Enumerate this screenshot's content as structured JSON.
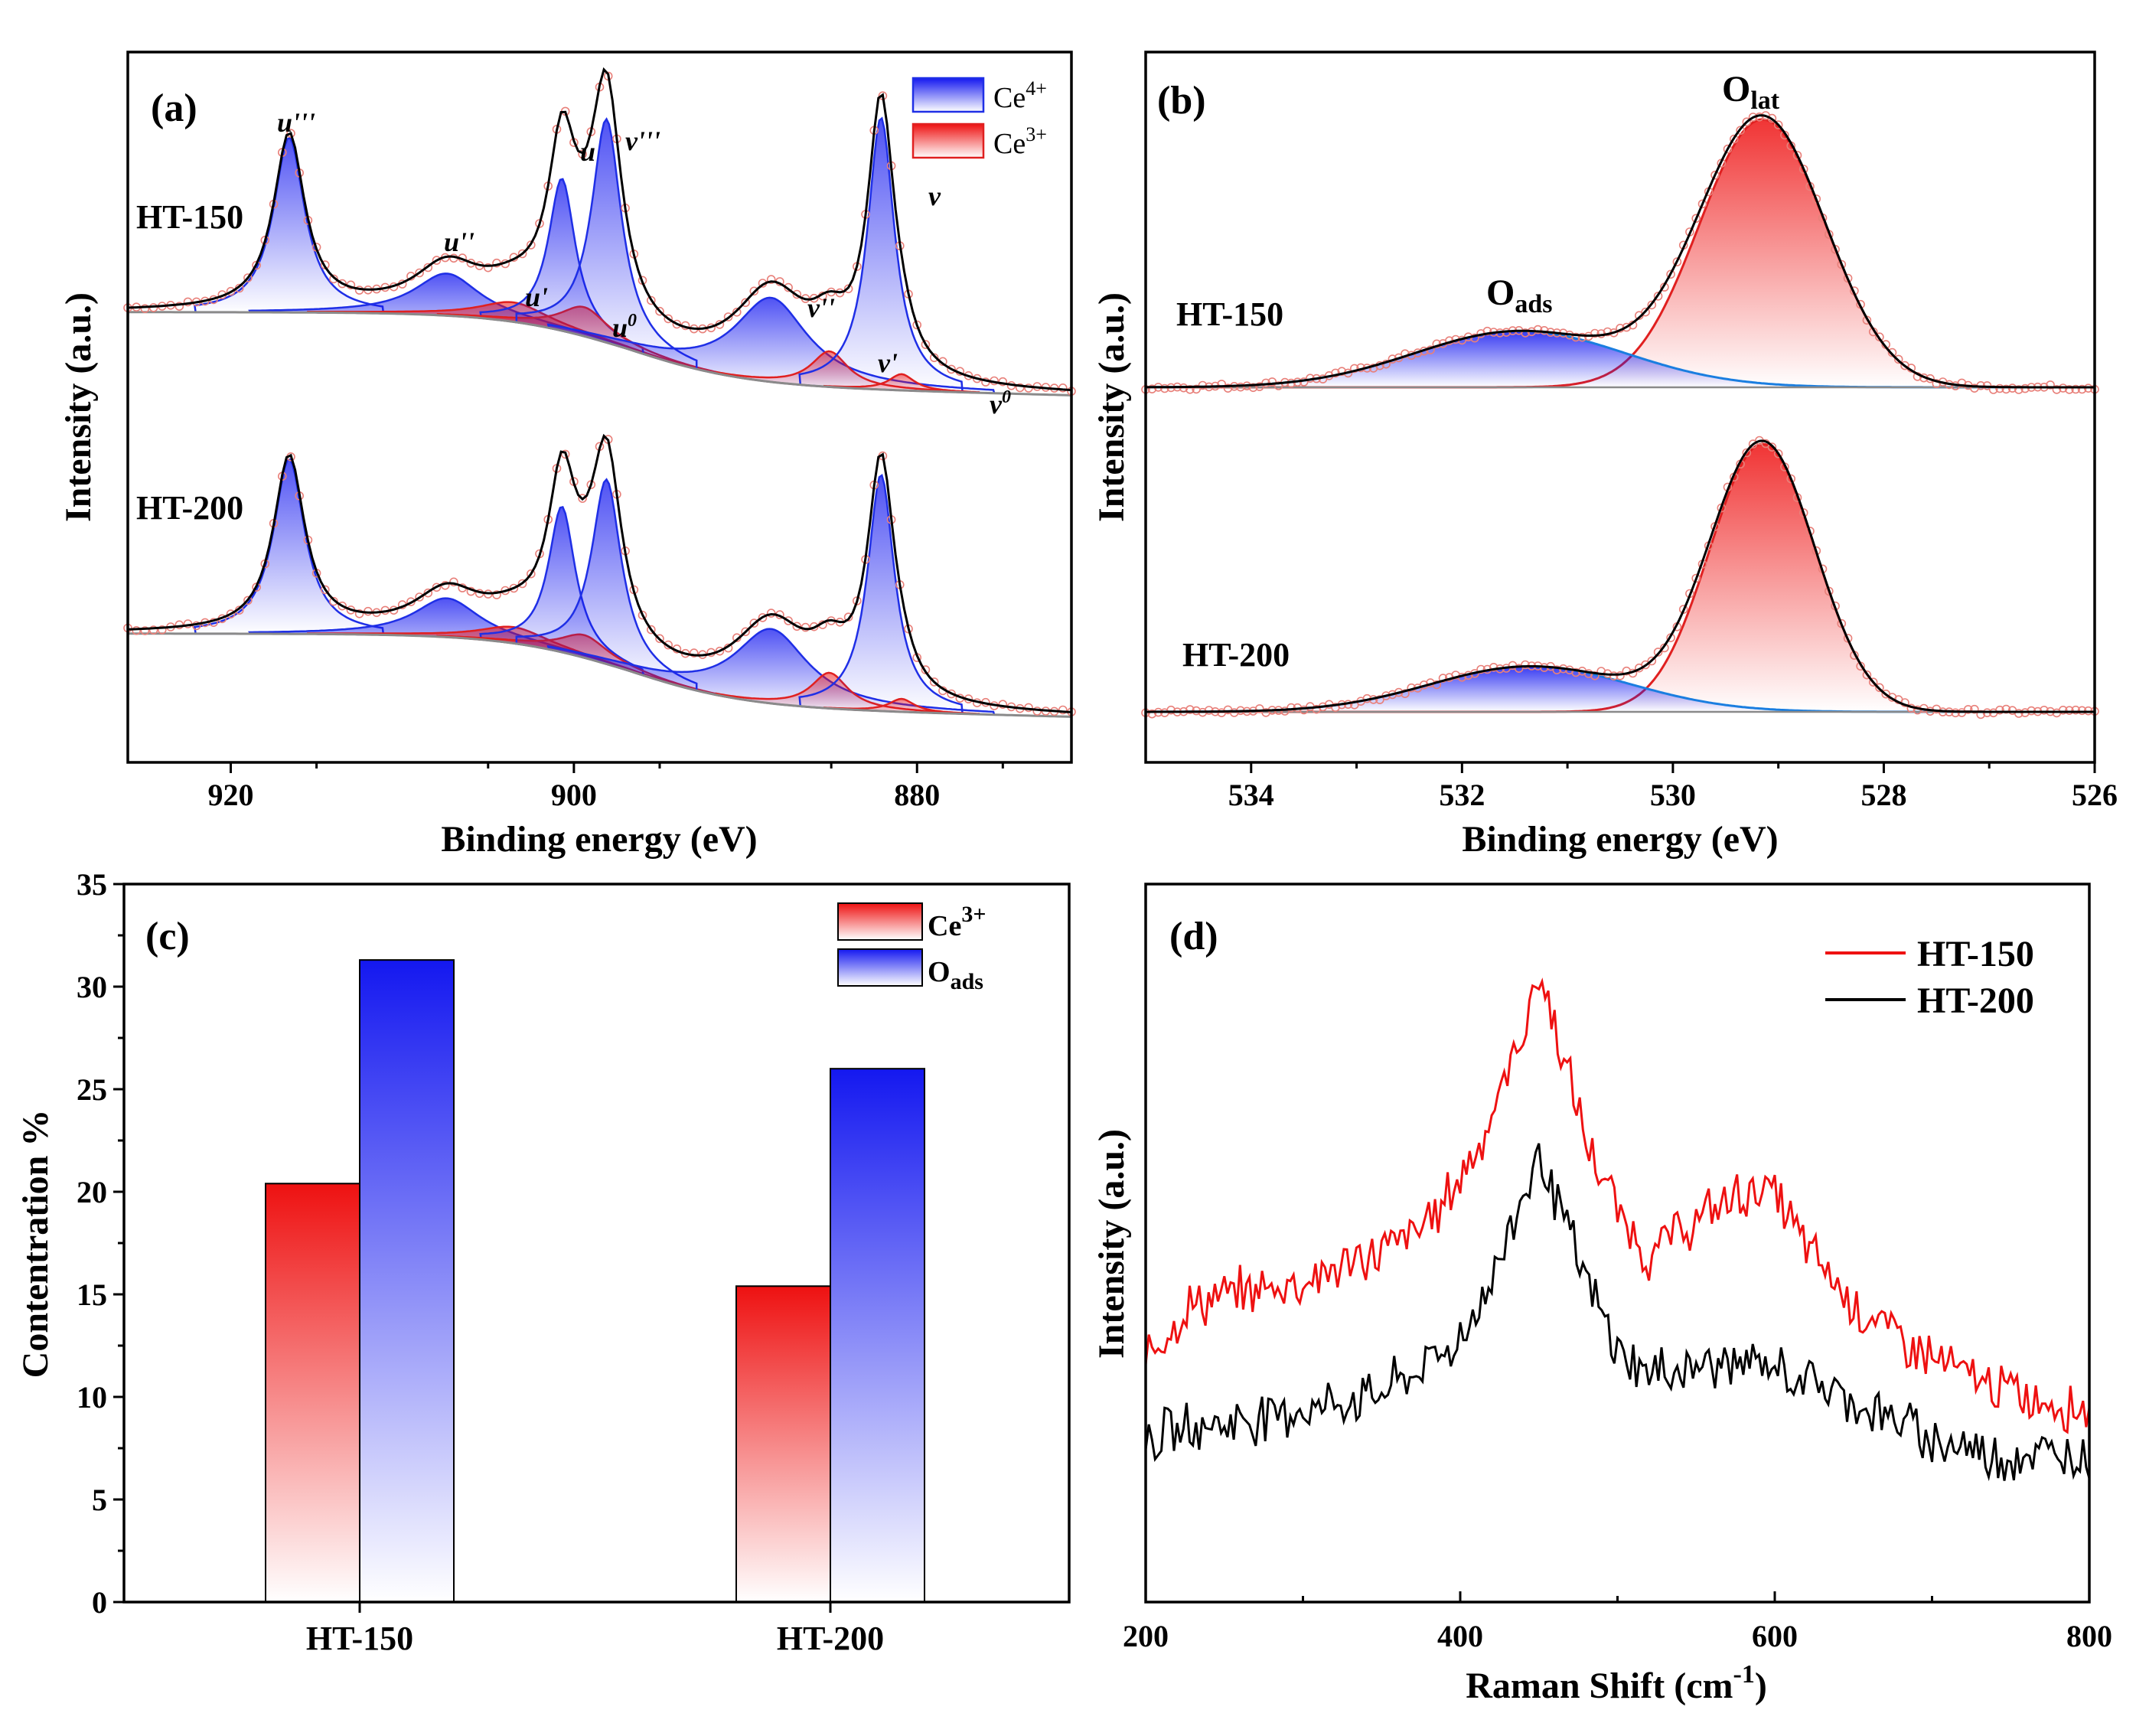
{
  "chart_data": [
    {
      "panel": "(a)",
      "type": "line",
      "xlabel": "Binding energy (eV)",
      "ylabel": "Intensity (a.u.)",
      "xlim": [
        926,
        871
      ],
      "xticks": [
        "920",
        "900",
        "880"
      ],
      "xtick_values": [
        920,
        900,
        880
      ],
      "legend": [
        {
          "label": "Ce",
          "sup": "4+",
          "color": "#1f2fe6"
        },
        {
          "label": "Ce",
          "sup": "3+",
          "color": "#e02020"
        }
      ],
      "series": [
        {
          "name": "HT-150",
          "offset": 1.0,
          "peaks": [
            {
              "label": "u'''",
              "center": 916.6,
              "height": 0.54,
              "width": 1.1,
              "species": "Ce4+"
            },
            {
              "label": "u''",
              "center": 907.4,
              "height": 0.13,
              "width": 2.3,
              "species": "Ce4+"
            },
            {
              "label": "u'",
              "center": 903.5,
              "height": 0.06,
              "width": 2.4,
              "species": "Ce3+"
            },
            {
              "label": "u",
              "center": 900.7,
              "height": 0.47,
              "width": 0.95,
              "species": "Ce4+"
            },
            {
              "label": "u0",
              "center": 899.4,
              "height": 0.09,
              "width": 1.7,
              "species": "Ce3+"
            },
            {
              "label": "v'''",
              "center": 898.1,
              "height": 0.69,
              "width": 1.05,
              "species": "Ce4+"
            },
            {
              "label": "v''",
              "center": 888.5,
              "height": 0.26,
              "width": 2.6,
              "species": "Ce4+"
            },
            {
              "label": "v'",
              "center": 885.1,
              "height": 0.11,
              "width": 1.3,
              "species": "Ce3+"
            },
            {
              "label": "v",
              "center": 882.1,
              "height": 0.84,
              "width": 0.95,
              "species": "Ce4+"
            },
            {
              "label": "v0",
              "center": 880.9,
              "height": 0.05,
              "width": 0.9,
              "species": "Ce3+"
            }
          ]
        },
        {
          "name": "HT-200",
          "offset": 0.0,
          "peaks": [
            {
              "label": "u'''",
              "center": 916.6,
              "height": 0.54,
              "width": 1.1,
              "species": "Ce4+"
            },
            {
              "label": "u''",
              "center": 907.4,
              "height": 0.12,
              "width": 2.3,
              "species": "Ce4+"
            },
            {
              "label": "u'",
              "center": 903.5,
              "height": 0.05,
              "width": 2.4,
              "species": "Ce3+"
            },
            {
              "label": "u",
              "center": 900.7,
              "height": 0.45,
              "width": 0.95,
              "species": "Ce4+"
            },
            {
              "label": "u0",
              "center": 899.4,
              "height": 0.07,
              "width": 1.7,
              "species": "Ce3+"
            },
            {
              "label": "v'''",
              "center": 898.1,
              "height": 0.57,
              "width": 1.05,
              "species": "Ce4+"
            },
            {
              "label": "v''",
              "center": 888.5,
              "height": 0.23,
              "width": 2.6,
              "species": "Ce4+"
            },
            {
              "label": "v'",
              "center": 885.1,
              "height": 0.11,
              "width": 1.3,
              "species": "Ce3+"
            },
            {
              "label": "v",
              "center": 882.1,
              "height": 0.73,
              "width": 0.95,
              "species": "Ce4+"
            },
            {
              "label": "v0",
              "center": 880.9,
              "height": 0.04,
              "width": 0.9,
              "species": "Ce3+"
            }
          ]
        }
      ]
    },
    {
      "panel": "(b)",
      "type": "line",
      "xlabel": "Binding energy (eV)",
      "ylabel": "Intensity (a.u.)",
      "xlim": [
        535,
        526
      ],
      "xticks": [
        "534",
        "532",
        "530",
        "528",
        "526"
      ],
      "xtick_values": [
        534,
        532,
        530,
        528,
        526
      ],
      "peak_labels": {
        "O_lat": {
          "base": "O",
          "sub": "lat"
        },
        "O_ads": {
          "base": "O",
          "sub": "ads"
        }
      },
      "series": [
        {
          "name": "HT-150",
          "offset": 1.0,
          "O_lat_center": 529.15,
          "O_lat_height": 1.0,
          "O_lat_width": 0.6,
          "O_ads_center": 531.45,
          "O_ads_height": 0.21,
          "O_ads_width": 1.0
        },
        {
          "name": "HT-200",
          "offset": 0.0,
          "O_lat_center": 529.15,
          "O_lat_height": 1.0,
          "O_lat_width": 0.5,
          "O_ads_center": 531.35,
          "O_ads_height": 0.17,
          "O_ads_width": 0.95
        }
      ]
    },
    {
      "panel": "(c)",
      "type": "bar",
      "ylabel": "Contentration %",
      "ylim": [
        0,
        35
      ],
      "yticks": [
        "0",
        "5",
        "10",
        "15",
        "20",
        "25",
        "30",
        "35"
      ],
      "ytick_values": [
        0,
        5,
        10,
        15,
        20,
        25,
        30,
        35
      ],
      "categories": [
        "HT-150",
        "HT-200"
      ],
      "series": [
        {
          "name": "Ce3+",
          "label": "Ce",
          "sup": "3+",
          "color": "#ee1111",
          "values": [
            20.4,
            15.4
          ]
        },
        {
          "name": "Oads",
          "label": "O",
          "sub": "ads",
          "color": "#1418f0",
          "values": [
            31.3,
            26.0
          ]
        }
      ]
    },
    {
      "panel": "(d)",
      "type": "line",
      "xlabel": "Raman Shift  (cm",
      "xlabel_sup": "-1",
      "xlabel_end": ")",
      "ylabel": "Intensity (a.u.)",
      "xlim": [
        200,
        800
      ],
      "xticks": [
        "200",
        "400",
        "600",
        "800"
      ],
      "xtick_values": [
        200,
        400,
        600,
        800
      ],
      "series": [
        {
          "name": "HT-150",
          "color": "#ee1111",
          "x": [
            200,
            230,
            260,
            300,
            340,
            370,
            385,
            400,
            420,
            440,
            450,
            460,
            480,
            500,
            520,
            535,
            550,
            570,
            590,
            600,
            620,
            650,
            680,
            720,
            760,
            800
          ],
          "y": [
            30,
            38,
            40,
            42,
            46,
            50,
            54,
            60,
            70,
            85,
            95,
            86,
            66,
            54,
            46,
            50,
            52,
            56,
            58,
            57,
            48,
            38,
            32,
            26,
            22,
            20
          ]
        },
        {
          "name": "HT-200",
          "color": "#000000",
          "x": [
            200,
            230,
            260,
            300,
            340,
            370,
            400,
            420,
            440,
            450,
            460,
            480,
            500,
            520,
            540,
            570,
            600,
            630,
            660,
            700,
            740,
            800
          ],
          "y": [
            15,
            17,
            18,
            20,
            22,
            26,
            32,
            42,
            57,
            64,
            57,
            42,
            30,
            26,
            27,
            28,
            27,
            24,
            20,
            15,
            12,
            12
          ]
        }
      ]
    }
  ],
  "labels": {
    "panel_a": "(a)",
    "panel_b": "(b)",
    "panel_c": "(c)",
    "panel_d": "(d)",
    "ht150": "HT-150",
    "ht200": "HT-200"
  },
  "colors": {
    "fit_black": "#000000",
    "data_marker": "#e8807a",
    "ce4": "#1f2fe6",
    "ce3": "#e02020",
    "bg_line": "#8a8a8a",
    "oads_line": "#1a7ee0",
    "olat_line": "#e02020"
  }
}
